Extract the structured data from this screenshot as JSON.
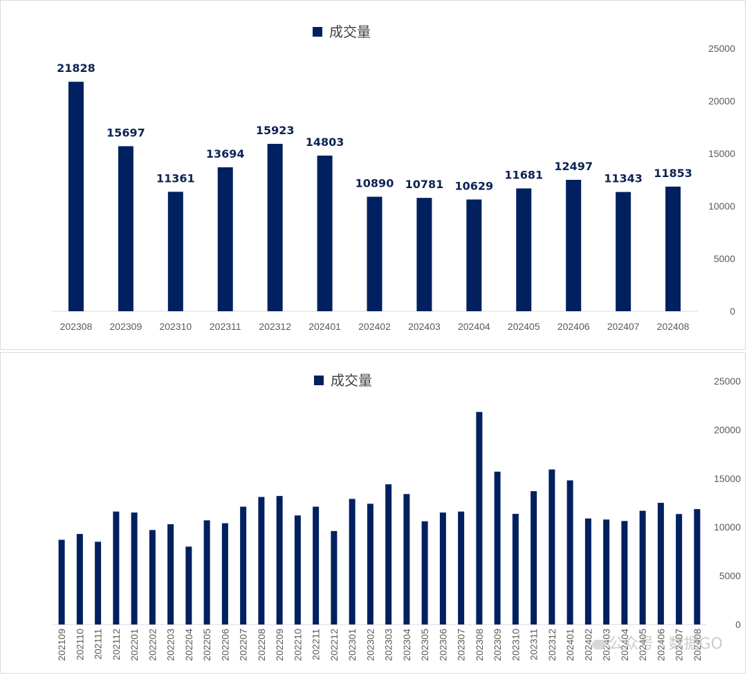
{
  "chart_data": [
    {
      "type": "bar",
      "legend": "成交量",
      "legend_position": "top-center",
      "y_axis_position": "right",
      "ylim": [
        0,
        25000
      ],
      "yticks": [
        "25000",
        "20000",
        "15000",
        "10000",
        "5000",
        "0"
      ],
      "color": "#002060",
      "categories": [
        "202308",
        "202309",
        "202310",
        "202311",
        "202312",
        "202401",
        "202402",
        "202403",
        "202404",
        "202405",
        "202406",
        "202407",
        "202408"
      ],
      "values": [
        21828,
        15697,
        11361,
        13694,
        15923,
        14803,
        10890,
        10781,
        10629,
        11681,
        12497,
        11343,
        11853
      ],
      "data_labels": true,
      "grid": false
    },
    {
      "type": "bar",
      "legend": "成交量",
      "legend_position": "top-center",
      "y_axis_position": "right",
      "ylim": [
        0,
        25000
      ],
      "yticks": [
        "25000",
        "20000",
        "15000",
        "10000",
        "5000",
        "0"
      ],
      "color": "#002060",
      "categories": [
        "202109",
        "202110",
        "202111",
        "202112",
        "202201",
        "202202",
        "202203",
        "202204",
        "202205",
        "202206",
        "202207",
        "202208",
        "202209",
        "202210",
        "202211",
        "202212",
        "202301",
        "202302",
        "202303",
        "202304",
        "202305",
        "202306",
        "202307",
        "202308",
        "202309",
        "202310",
        "202311",
        "202312",
        "202401",
        "202402",
        "202403",
        "202404",
        "202405",
        "202406",
        "202407",
        "202408"
      ],
      "values": [
        8700,
        9300,
        8500,
        11600,
        11500,
        9700,
        10300,
        8000,
        10700,
        10400,
        12100,
        13100,
        13200,
        11200,
        12100,
        9600,
        12900,
        12400,
        14400,
        13400,
        10600,
        11500,
        11600,
        21828,
        15697,
        11361,
        13694,
        15923,
        14803,
        10890,
        10781,
        10629,
        11681,
        12497,
        11343,
        11853
      ],
      "data_labels": false,
      "grid": false
    }
  ],
  "watermark": "公众号 · 数据GO"
}
